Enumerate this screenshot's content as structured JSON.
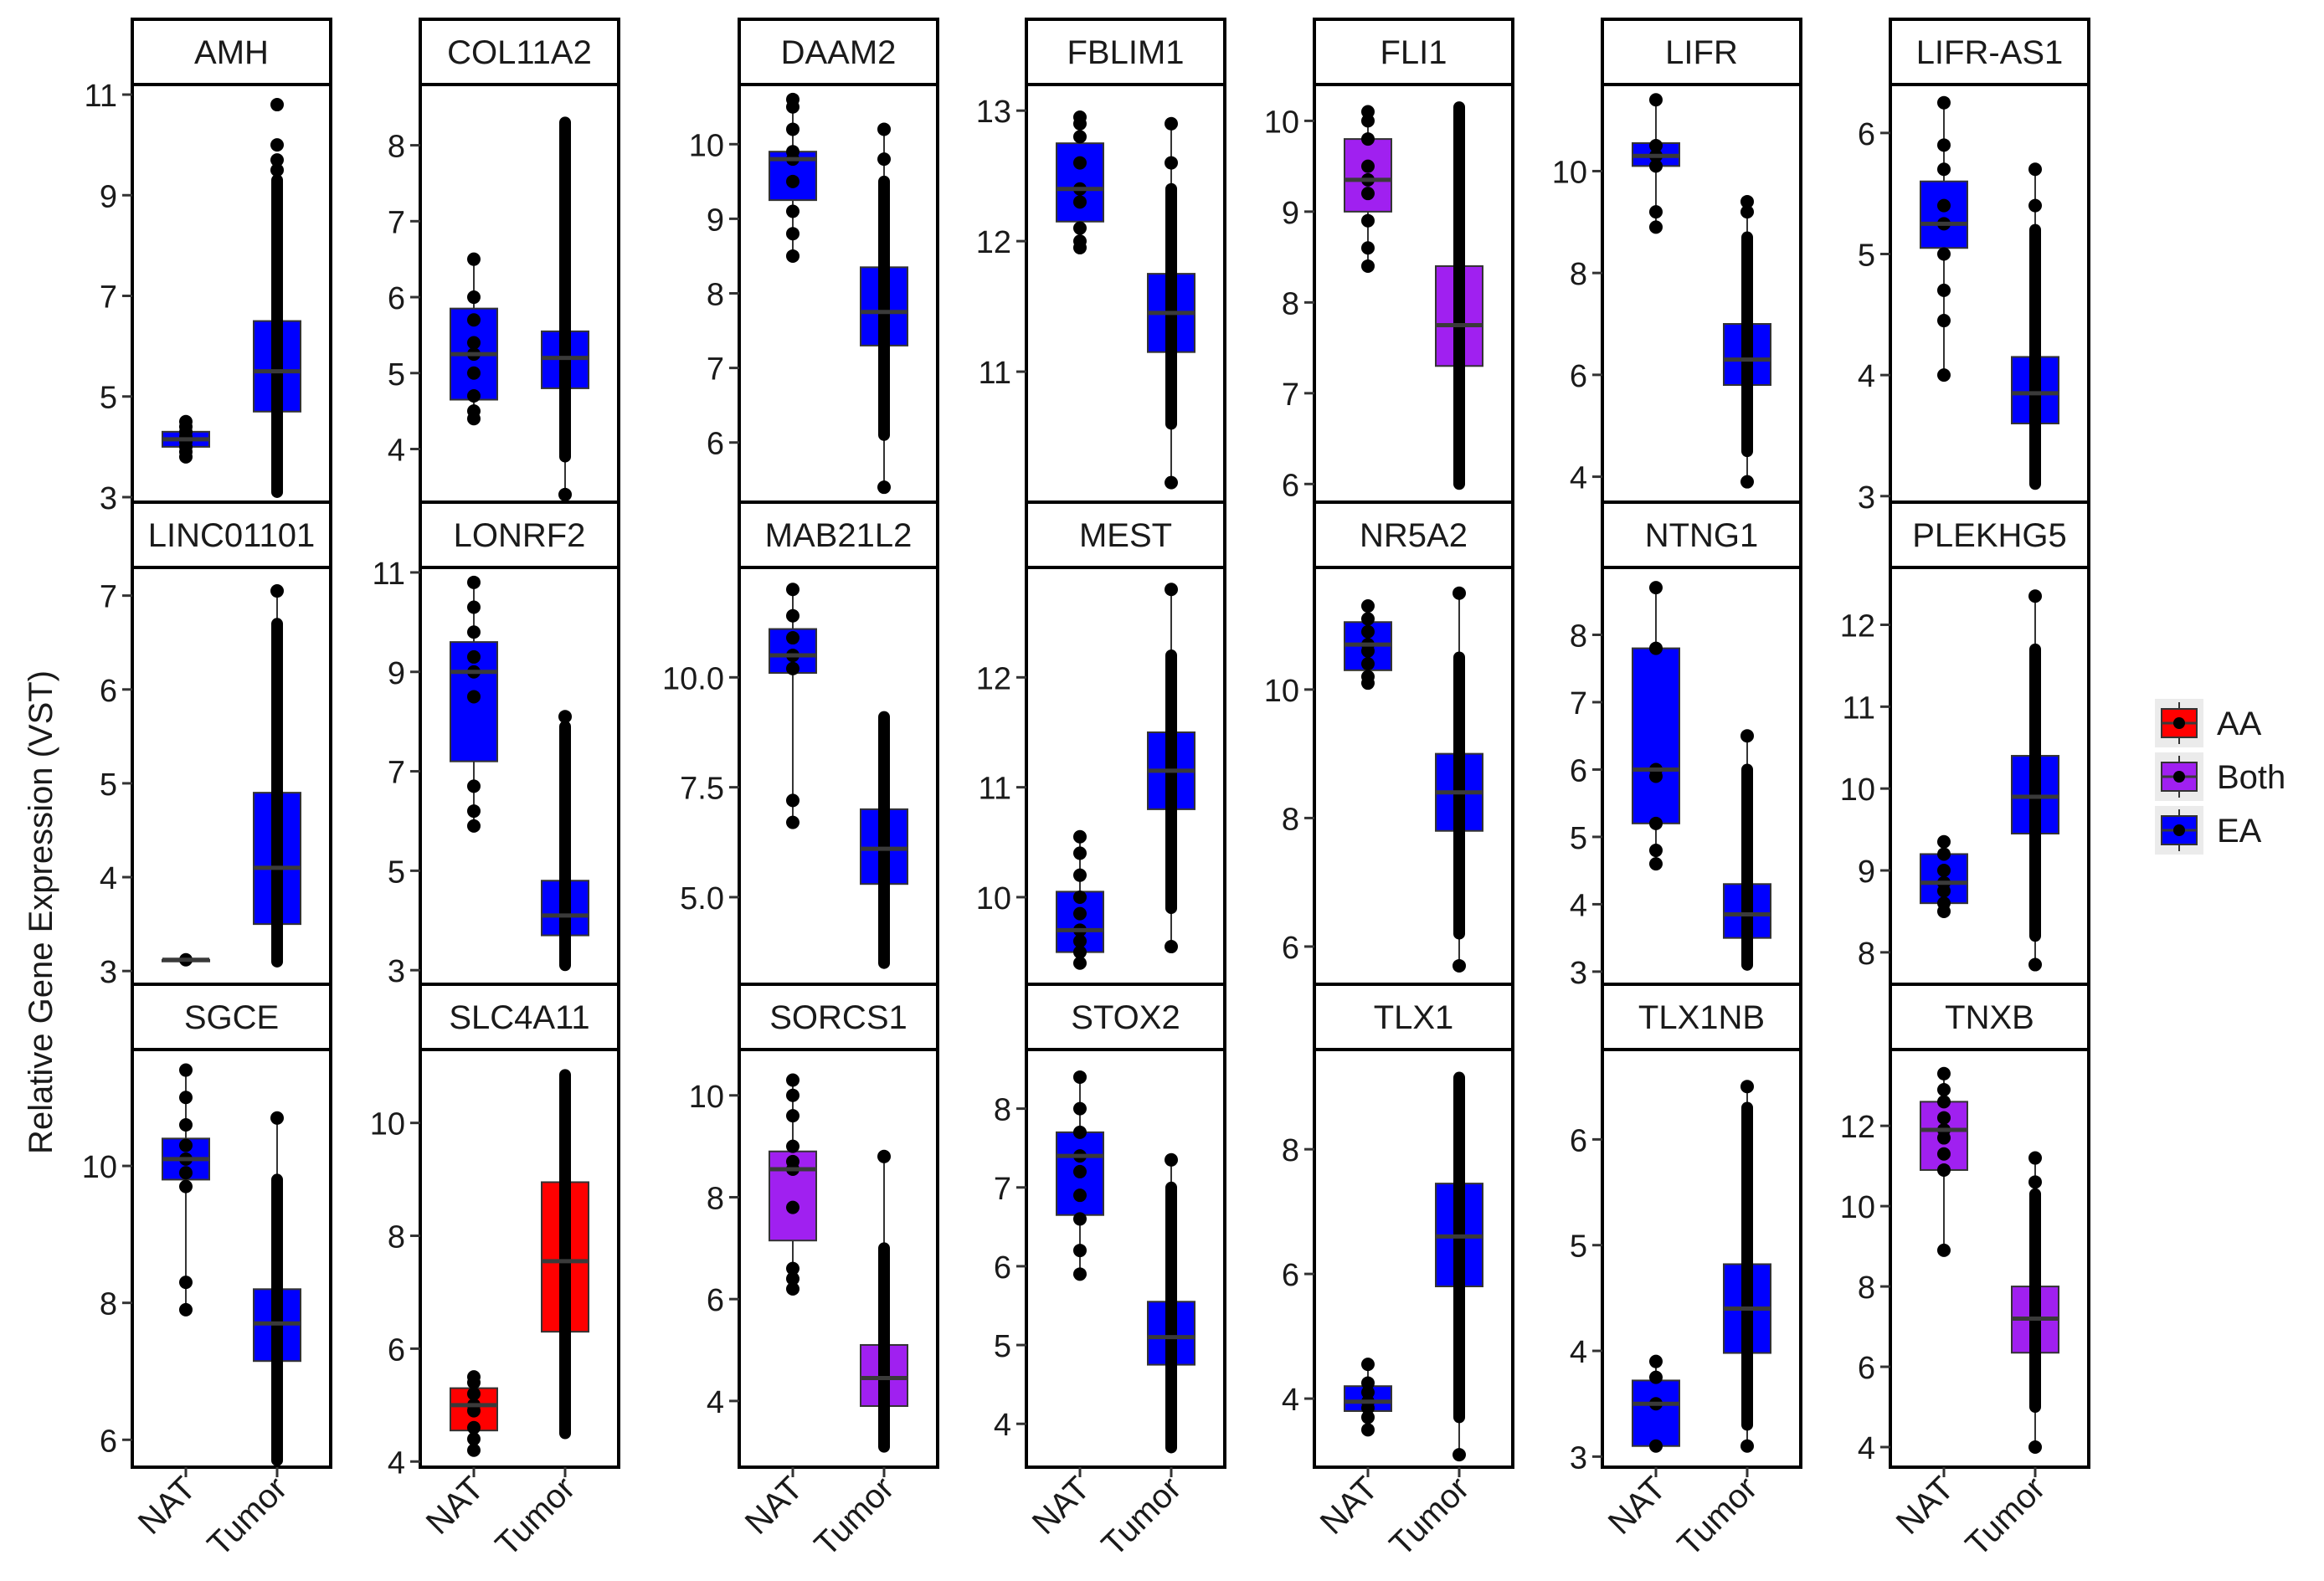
{
  "chart_data": {
    "type": "box",
    "ylabel": "Relative Gene Expression (VST)",
    "categories": [
      "NAT",
      "Tumor"
    ],
    "legend": {
      "position": "right",
      "entries": [
        {
          "name": "AA",
          "color": "#ff0000"
        },
        {
          "name": "Both",
          "color": "#a020f0"
        },
        {
          "name": "EA",
          "color": "#0000ff"
        }
      ]
    },
    "panels": [
      {
        "gene": "AMH",
        "group": "EA",
        "ylim": [
          2.9,
          11.2
        ],
        "ticks": [
          3,
          5,
          7,
          9,
          11
        ],
        "boxes": [
          {
            "cat": "NAT",
            "min": 3.8,
            "q1": 4.0,
            "median": 4.15,
            "q3": 4.3,
            "max": 4.5,
            "points": [
              3.8,
              3.9,
              4.0,
              4.1,
              4.15,
              4.2,
              4.3,
              4.4,
              4.5
            ]
          },
          {
            "cat": "Tumor",
            "min": 3.1,
            "q1": 4.7,
            "median": 5.5,
            "q3": 6.5,
            "max": 9.3,
            "dense": [
              3.1,
              9.3
            ],
            "points": [
              9.5,
              9.7,
              10.0,
              10.8
            ]
          }
        ]
      },
      {
        "gene": "COL11A2",
        "group": "EA",
        "ylim": [
          3.3,
          8.8
        ],
        "ticks": [
          4,
          5,
          6,
          7,
          8
        ],
        "boxes": [
          {
            "cat": "NAT",
            "min": 4.4,
            "q1": 4.65,
            "median": 5.25,
            "q3": 5.85,
            "max": 6.5,
            "points": [
              4.4,
              4.5,
              4.7,
              5.0,
              5.25,
              5.4,
              5.7,
              6.0,
              6.5
            ]
          },
          {
            "cat": "Tumor",
            "min": 3.4,
            "q1": 4.8,
            "median": 5.2,
            "q3": 5.55,
            "max": 8.3,
            "dense": [
              3.9,
              8.3
            ],
            "points": [
              3.4
            ]
          }
        ]
      },
      {
        "gene": "DAAM2",
        "group": "EA",
        "ylim": [
          5.2,
          10.8
        ],
        "ticks": [
          6,
          7,
          8,
          9,
          10
        ],
        "boxes": [
          {
            "cat": "NAT",
            "min": 8.5,
            "q1": 9.25,
            "median": 9.8,
            "q3": 9.9,
            "max": 10.6,
            "points": [
              8.5,
              8.8,
              9.1,
              9.5,
              9.8,
              9.9,
              10.2,
              10.5,
              10.6
            ]
          },
          {
            "cat": "Tumor",
            "min": 5.4,
            "q1": 7.3,
            "median": 7.75,
            "q3": 8.35,
            "max": 10.2,
            "dense": [
              6.1,
              9.5
            ],
            "points": [
              5.4,
              9.8,
              10.2
            ]
          }
        ]
      },
      {
        "gene": "FBLIM1",
        "group": "EA",
        "ylim": [
          10.0,
          13.2
        ],
        "ticks": [
          11,
          12,
          13
        ],
        "boxes": [
          {
            "cat": "NAT",
            "min": 11.95,
            "q1": 12.15,
            "median": 12.4,
            "q3": 12.75,
            "max": 12.95,
            "points": [
              11.95,
              12.0,
              12.1,
              12.3,
              12.4,
              12.6,
              12.8,
              12.9,
              12.95
            ]
          },
          {
            "cat": "Tumor",
            "min": 10.15,
            "q1": 11.15,
            "median": 11.45,
            "q3": 11.75,
            "max": 12.9,
            "dense": [
              10.6,
              12.4
            ],
            "points": [
              10.15,
              12.6,
              12.9
            ]
          }
        ]
      },
      {
        "gene": "FLI1",
        "group": "Both",
        "ylim": [
          5.8,
          10.4
        ],
        "ticks": [
          6,
          7,
          8,
          9,
          10
        ],
        "boxes": [
          {
            "cat": "NAT",
            "min": 8.4,
            "q1": 9.0,
            "median": 9.35,
            "q3": 9.8,
            "max": 10.1,
            "points": [
              8.4,
              8.6,
              8.9,
              9.2,
              9.35,
              9.5,
              9.8,
              10.0,
              10.1
            ]
          },
          {
            "cat": "Tumor",
            "min": 6.0,
            "q1": 7.3,
            "median": 7.75,
            "q3": 8.4,
            "max": 10.15,
            "dense": [
              6.0,
              10.15
            ],
            "points": []
          }
        ]
      },
      {
        "gene": "LIFR",
        "group": "EA",
        "ylim": [
          3.5,
          11.7
        ],
        "ticks": [
          4,
          6,
          8,
          10
        ],
        "boxes": [
          {
            "cat": "NAT",
            "min": 8.9,
            "q1": 10.1,
            "median": 10.3,
            "q3": 10.55,
            "max": 11.4,
            "points": [
              8.9,
              9.2,
              10.1,
              10.3,
              10.5,
              11.4
            ]
          },
          {
            "cat": "Tumor",
            "min": 3.9,
            "q1": 5.8,
            "median": 6.3,
            "q3": 7.0,
            "max": 9.4,
            "dense": [
              4.5,
              8.7
            ],
            "points": [
              3.9,
              9.2,
              9.4
            ]
          }
        ]
      },
      {
        "gene": "LIFR-AS1",
        "group": "EA",
        "ylim": [
          2.95,
          6.4
        ],
        "ticks": [
          3,
          4,
          5,
          6
        ],
        "boxes": [
          {
            "cat": "NAT",
            "min": 4.0,
            "q1": 5.05,
            "median": 5.25,
            "q3": 5.6,
            "max": 6.25,
            "points": [
              4.0,
              4.45,
              4.7,
              5.0,
              5.25,
              5.4,
              5.7,
              5.9,
              6.25
            ]
          },
          {
            "cat": "Tumor",
            "min": 3.1,
            "q1": 3.6,
            "median": 3.85,
            "q3": 4.15,
            "max": 5.7,
            "dense": [
              3.1,
              5.2
            ],
            "points": [
              5.4,
              5.7
            ]
          }
        ]
      },
      {
        "gene": "LINC01101",
        "group": "EA",
        "ylim": [
          2.85,
          7.3
        ],
        "ticks": [
          3,
          4,
          5,
          6,
          7
        ],
        "boxes": [
          {
            "cat": "NAT",
            "min": 3.12,
            "q1": 3.12,
            "median": 3.12,
            "q3": 3.12,
            "max": 3.12,
            "points": [
              3.12
            ]
          },
          {
            "cat": "Tumor",
            "min": 3.1,
            "q1": 3.5,
            "median": 4.1,
            "q3": 4.9,
            "max": 7.05,
            "dense": [
              3.1,
              6.7
            ],
            "points": [
              7.05
            ]
          }
        ]
      },
      {
        "gene": "LONRF2",
        "group": "EA",
        "ylim": [
          2.7,
          11.1
        ],
        "ticks": [
          3,
          5,
          7,
          9,
          11
        ],
        "boxes": [
          {
            "cat": "NAT",
            "min": 5.9,
            "q1": 7.2,
            "median": 9.0,
            "q3": 9.6,
            "max": 10.8,
            "points": [
              5.9,
              6.2,
              6.7,
              8.5,
              9.0,
              9.3,
              9.8,
              10.3,
              10.8
            ]
          },
          {
            "cat": "Tumor",
            "min": 3.1,
            "q1": 3.7,
            "median": 4.1,
            "q3": 4.8,
            "max": 8.1,
            "dense": [
              3.1,
              7.9
            ],
            "points": [
              8.1
            ]
          }
        ]
      },
      {
        "gene": "MAB21L2",
        "group": "EA",
        "ylim": [
          3.0,
          12.5
        ],
        "ticks": [
          5.0,
          7.5,
          10.0
        ],
        "boxes": [
          {
            "cat": "NAT",
            "min": 6.7,
            "q1": 10.1,
            "median": 10.5,
            "q3": 11.1,
            "max": 12.0,
            "points": [
              6.7,
              7.2,
              10.2,
              10.5,
              10.9,
              11.4,
              12.0
            ]
          },
          {
            "cat": "Tumor",
            "min": 3.5,
            "q1": 5.3,
            "median": 6.1,
            "q3": 7.0,
            "max": 9.1,
            "dense": [
              3.5,
              9.1
            ],
            "points": []
          }
        ]
      },
      {
        "gene": "MEST",
        "group": "EA",
        "ylim": [
          9.2,
          13.0
        ],
        "ticks": [
          10,
          11,
          12
        ],
        "boxes": [
          {
            "cat": "NAT",
            "min": 9.4,
            "q1": 9.5,
            "median": 9.7,
            "q3": 10.05,
            "max": 10.55,
            "points": [
              9.4,
              9.5,
              9.6,
              9.7,
              9.85,
              10.0,
              10.2,
              10.4,
              10.55
            ]
          },
          {
            "cat": "Tumor",
            "min": 9.55,
            "q1": 10.8,
            "median": 11.15,
            "q3": 11.5,
            "max": 12.8,
            "dense": [
              9.9,
              12.2
            ],
            "points": [
              9.55,
              12.8
            ]
          }
        ]
      },
      {
        "gene": "NR5A2",
        "group": "EA",
        "ylim": [
          5.4,
          11.9
        ],
        "ticks": [
          6,
          8,
          10
        ],
        "boxes": [
          {
            "cat": "NAT",
            "min": 10.1,
            "q1": 10.3,
            "median": 10.7,
            "q3": 11.05,
            "max": 11.3,
            "points": [
              10.1,
              10.2,
              10.4,
              10.6,
              10.7,
              10.9,
              11.1,
              11.3
            ]
          },
          {
            "cat": "Tumor",
            "min": 5.7,
            "q1": 7.8,
            "median": 8.4,
            "q3": 9.0,
            "max": 11.5,
            "dense": [
              6.2,
              10.5
            ],
            "points": [
              5.7,
              11.5
            ]
          }
        ]
      },
      {
        "gene": "NTNG1",
        "group": "EA",
        "ylim": [
          2.8,
          9.0
        ],
        "ticks": [
          3,
          4,
          5,
          6,
          7,
          8
        ],
        "boxes": [
          {
            "cat": "NAT",
            "min": 4.6,
            "q1": 5.2,
            "median": 6.0,
            "q3": 7.8,
            "max": 8.7,
            "points": [
              4.6,
              4.8,
              5.2,
              5.9,
              6.0,
              7.8,
              8.7
            ]
          },
          {
            "cat": "Tumor",
            "min": 3.1,
            "q1": 3.5,
            "median": 3.85,
            "q3": 4.3,
            "max": 6.5,
            "dense": [
              3.1,
              6.0
            ],
            "points": [
              6.5
            ]
          }
        ]
      },
      {
        "gene": "PLEKHG5",
        "group": "EA",
        "ylim": [
          7.6,
          12.7
        ],
        "ticks": [
          8,
          9,
          10,
          11,
          12
        ],
        "boxes": [
          {
            "cat": "NAT",
            "min": 8.5,
            "q1": 8.6,
            "median": 8.85,
            "q3": 9.2,
            "max": 9.35,
            "points": [
              8.5,
              8.6,
              8.75,
              8.85,
              9.0,
              9.2,
              9.35
            ]
          },
          {
            "cat": "Tumor",
            "min": 7.85,
            "q1": 9.45,
            "median": 9.9,
            "q3": 10.4,
            "max": 12.35,
            "dense": [
              8.2,
              11.7
            ],
            "points": [
              7.85,
              12.35
            ]
          }
        ]
      },
      {
        "gene": "SGCE",
        "group": "EA",
        "ylim": [
          5.6,
          11.7
        ],
        "ticks": [
          6,
          8,
          10
        ],
        "boxes": [
          {
            "cat": "NAT",
            "min": 7.9,
            "q1": 9.8,
            "median": 10.1,
            "q3": 10.4,
            "max": 11.4,
            "points": [
              7.9,
              8.3,
              9.7,
              9.9,
              10.1,
              10.3,
              10.6,
              11.0,
              11.4
            ]
          },
          {
            "cat": "Tumor",
            "min": 5.7,
            "q1": 7.15,
            "median": 7.7,
            "q3": 8.2,
            "max": 10.7,
            "dense": [
              5.7,
              9.8
            ],
            "points": [
              10.7
            ]
          }
        ]
      },
      {
        "gene": "SLC4A11",
        "group": "AA",
        "ylim": [
          3.9,
          11.3
        ],
        "ticks": [
          4,
          6,
          8,
          10
        ],
        "boxes": [
          {
            "cat": "NAT",
            "min": 4.2,
            "q1": 4.55,
            "median": 5.0,
            "q3": 5.3,
            "max": 5.5,
            "points": [
              4.2,
              4.4,
              4.6,
              4.9,
              5.0,
              5.2,
              5.4,
              5.5
            ]
          },
          {
            "cat": "Tumor",
            "min": 4.5,
            "q1": 6.3,
            "median": 7.55,
            "q3": 8.95,
            "max": 10.85,
            "dense": [
              4.5,
              10.85
            ],
            "points": []
          }
        ]
      },
      {
        "gene": "SORCS1",
        "group": "Both",
        "ylim": [
          2.7,
          10.9
        ],
        "ticks": [
          4,
          6,
          8,
          10
        ],
        "boxes": [
          {
            "cat": "NAT",
            "min": 6.2,
            "q1": 7.15,
            "median": 8.55,
            "q3": 8.9,
            "max": 10.3,
            "points": [
              6.2,
              6.4,
              6.6,
              7.8,
              8.55,
              8.7,
              9.0,
              9.6,
              10.0,
              10.3
            ]
          },
          {
            "cat": "Tumor",
            "min": 3.1,
            "q1": 3.9,
            "median": 4.45,
            "q3": 5.1,
            "max": 8.8,
            "dense": [
              3.1,
              7.0
            ],
            "points": [
              8.8
            ]
          }
        ]
      },
      {
        "gene": "STOX2",
        "group": "EA",
        "ylim": [
          3.45,
          8.75
        ],
        "ticks": [
          4,
          5,
          6,
          7,
          8
        ],
        "boxes": [
          {
            "cat": "NAT",
            "min": 5.9,
            "q1": 6.65,
            "median": 7.4,
            "q3": 7.7,
            "max": 8.4,
            "points": [
              5.9,
              6.2,
              6.6,
              6.9,
              7.2,
              7.4,
              7.7,
              8.0,
              8.4
            ]
          },
          {
            "cat": "Tumor",
            "min": 3.7,
            "q1": 4.75,
            "median": 5.1,
            "q3": 5.55,
            "max": 7.35,
            "dense": [
              3.7,
              7.0
            ],
            "points": [
              7.35
            ]
          }
        ]
      },
      {
        "gene": "TLX1",
        "group": "EA",
        "ylim": [
          2.9,
          9.6
        ],
        "ticks": [
          4,
          6,
          8
        ],
        "boxes": [
          {
            "cat": "NAT",
            "min": 3.5,
            "q1": 3.8,
            "median": 3.95,
            "q3": 4.2,
            "max": 4.55,
            "points": [
              3.5,
              3.7,
              3.85,
              3.95,
              4.1,
              4.25,
              4.55
            ]
          },
          {
            "cat": "Tumor",
            "min": 3.1,
            "q1": 5.8,
            "median": 6.6,
            "q3": 7.45,
            "max": 9.15,
            "dense": [
              3.7,
              9.15
            ],
            "points": [
              3.1
            ]
          }
        ]
      },
      {
        "gene": "TLX1NB",
        "group": "EA",
        "ylim": [
          2.9,
          6.85
        ],
        "ticks": [
          3,
          4,
          5,
          6
        ],
        "boxes": [
          {
            "cat": "NAT",
            "min": 3.1,
            "q1": 3.1,
            "median": 3.5,
            "q3": 3.72,
            "max": 3.9,
            "points": [
              3.1,
              3.5,
              3.75,
              3.9
            ]
          },
          {
            "cat": "Tumor",
            "min": 3.1,
            "q1": 3.98,
            "median": 4.4,
            "q3": 4.82,
            "max": 6.5,
            "dense": [
              3.3,
              6.3
            ],
            "points": [
              3.1,
              6.5
            ]
          }
        ]
      },
      {
        "gene": "TNXB",
        "group": "Both",
        "ylim": [
          3.5,
          13.9
        ],
        "ticks": [
          4,
          6,
          8,
          10,
          12
        ],
        "boxes": [
          {
            "cat": "NAT",
            "min": 8.9,
            "q1": 10.9,
            "median": 11.9,
            "q3": 12.6,
            "max": 13.3,
            "points": [
              8.9,
              10.9,
              11.3,
              11.7,
              11.9,
              12.2,
              12.6,
              12.9,
              13.3
            ]
          },
          {
            "cat": "Tumor",
            "min": 4.0,
            "q1": 6.35,
            "median": 7.2,
            "q3": 8.0,
            "max": 11.2,
            "dense": [
              5.0,
              10.3
            ],
            "points": [
              4.0,
              10.6,
              11.2
            ]
          }
        ]
      }
    ]
  }
}
